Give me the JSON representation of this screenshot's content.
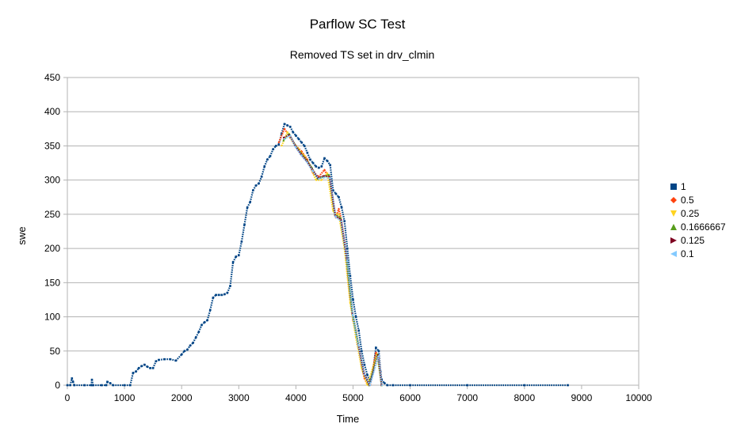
{
  "chart_data": {
    "type": "scatter",
    "title": "Parflow SC Test",
    "subtitle": "Removed TS set in drv_clmin",
    "xlabel": "Time",
    "ylabel": "swe",
    "xlim": [
      0,
      10000
    ],
    "ylim": [
      0,
      450
    ],
    "xticks": [
      0,
      1000,
      2000,
      3000,
      4000,
      5000,
      6000,
      7000,
      8000,
      9000,
      10000
    ],
    "yticks": [
      0,
      50,
      100,
      150,
      200,
      250,
      300,
      350,
      400,
      450
    ],
    "grid": "horizontal",
    "legend_position": "right",
    "series": [
      {
        "name": "1",
        "color": "#004586",
        "marker": "square",
        "points": [
          [
            0,
            0
          ],
          [
            50,
            0
          ],
          [
            80,
            10
          ],
          [
            100,
            5
          ],
          [
            120,
            0
          ],
          [
            300,
            0
          ],
          [
            420,
            0
          ],
          [
            430,
            8
          ],
          [
            450,
            0
          ],
          [
            600,
            0
          ],
          [
            680,
            0
          ],
          [
            700,
            5
          ],
          [
            750,
            3
          ],
          [
            800,
            0
          ],
          [
            1000,
            0
          ],
          [
            1100,
            0
          ],
          [
            1150,
            18
          ],
          [
            1200,
            20
          ],
          [
            1250,
            25
          ],
          [
            1300,
            28
          ],
          [
            1350,
            30
          ],
          [
            1400,
            27
          ],
          [
            1450,
            25
          ],
          [
            1500,
            25
          ],
          [
            1550,
            35
          ],
          [
            1600,
            37
          ],
          [
            1700,
            38
          ],
          [
            1800,
            38
          ],
          [
            1900,
            36
          ],
          [
            2000,
            45
          ],
          [
            2050,
            50
          ],
          [
            2100,
            52
          ],
          [
            2150,
            58
          ],
          [
            2200,
            62
          ],
          [
            2250,
            70
          ],
          [
            2300,
            78
          ],
          [
            2350,
            88
          ],
          [
            2400,
            92
          ],
          [
            2450,
            95
          ],
          [
            2500,
            110
          ],
          [
            2550,
            128
          ],
          [
            2600,
            132
          ],
          [
            2650,
            132
          ],
          [
            2700,
            132
          ],
          [
            2750,
            133
          ],
          [
            2800,
            135
          ],
          [
            2850,
            145
          ],
          [
            2900,
            180
          ],
          [
            2950,
            188
          ],
          [
            3000,
            190
          ],
          [
            3050,
            210
          ],
          [
            3100,
            235
          ],
          [
            3150,
            260
          ],
          [
            3200,
            268
          ],
          [
            3250,
            285
          ],
          [
            3300,
            292
          ],
          [
            3350,
            295
          ],
          [
            3400,
            305
          ],
          [
            3450,
            320
          ],
          [
            3500,
            330
          ],
          [
            3550,
            335
          ],
          [
            3600,
            345
          ],
          [
            3650,
            350
          ],
          [
            3700,
            352
          ],
          [
            3750,
            368
          ],
          [
            3800,
            382
          ],
          [
            3850,
            380
          ],
          [
            3900,
            378
          ],
          [
            3950,
            370
          ],
          [
            4000,
            365
          ],
          [
            4050,
            360
          ],
          [
            4100,
            355
          ],
          [
            4150,
            350
          ],
          [
            4200,
            340
          ],
          [
            4250,
            330
          ],
          [
            4300,
            325
          ],
          [
            4350,
            320
          ],
          [
            4400,
            318
          ],
          [
            4450,
            320
          ],
          [
            4500,
            332
          ],
          [
            4550,
            328
          ],
          [
            4600,
            322
          ],
          [
            4650,
            285
          ],
          [
            4700,
            280
          ],
          [
            4750,
            275
          ],
          [
            4800,
            260
          ],
          [
            4850,
            240
          ],
          [
            4900,
            200
          ],
          [
            4950,
            160
          ],
          [
            5000,
            125
          ],
          [
            5050,
            100
          ],
          [
            5100,
            80
          ],
          [
            5150,
            50
          ],
          [
            5200,
            30
          ],
          [
            5250,
            15
          ],
          [
            5300,
            5
          ],
          [
            5350,
            20
          ],
          [
            5400,
            55
          ],
          [
            5450,
            50
          ],
          [
            5480,
            20
          ],
          [
            5500,
            8
          ],
          [
            5550,
            3
          ],
          [
            5600,
            0
          ],
          [
            5700,
            0
          ],
          [
            6000,
            0
          ],
          [
            7000,
            0
          ],
          [
            8000,
            0
          ],
          [
            8760,
            0
          ]
        ]
      },
      {
        "name": "0.5",
        "color": "#ff420e",
        "marker": "diamond",
        "points": [
          [
            3700,
            355
          ],
          [
            3800,
            375
          ],
          [
            3900,
            362
          ],
          [
            4000,
            350
          ],
          [
            4100,
            342
          ],
          [
            4200,
            330
          ],
          [
            4300,
            310
          ],
          [
            4400,
            305
          ],
          [
            4500,
            315
          ],
          [
            4600,
            300
          ],
          [
            4650,
            265
          ],
          [
            4700,
            245
          ],
          [
            4750,
            258
          ],
          [
            4800,
            240
          ],
          [
            4850,
            210
          ],
          [
            4900,
            170
          ],
          [
            4950,
            130
          ],
          [
            5000,
            95
          ],
          [
            5050,
            80
          ],
          [
            5100,
            55
          ],
          [
            5150,
            30
          ],
          [
            5200,
            10
          ],
          [
            5250,
            2
          ],
          [
            5300,
            0
          ],
          [
            5400,
            48
          ],
          [
            5450,
            40
          ],
          [
            5500,
            0
          ]
        ]
      },
      {
        "name": "0.25",
        "color": "#ffd320",
        "marker": "triangle-down",
        "points": [
          [
            3750,
            350
          ],
          [
            3850,
            370
          ],
          [
            3950,
            355
          ],
          [
            4050,
            345
          ],
          [
            4150,
            335
          ],
          [
            4250,
            320
          ],
          [
            4350,
            300
          ],
          [
            4450,
            300
          ],
          [
            4550,
            310
          ],
          [
            4650,
            255
          ],
          [
            4700,
            250
          ],
          [
            4750,
            250
          ],
          [
            4850,
            200
          ],
          [
            4950,
            120
          ],
          [
            5050,
            70
          ],
          [
            5150,
            25
          ],
          [
            5250,
            0
          ],
          [
            5420,
            45
          ],
          [
            5500,
            0
          ]
        ]
      },
      {
        "name": "0.1666667",
        "color": "#579d1c",
        "marker": "triangle-up",
        "points": [
          [
            3780,
            358
          ],
          [
            3880,
            368
          ],
          [
            3980,
            352
          ],
          [
            4080,
            340
          ],
          [
            4180,
            330
          ],
          [
            4280,
            318
          ],
          [
            4380,
            302
          ],
          [
            4480,
            305
          ],
          [
            4580,
            308
          ],
          [
            4680,
            250
          ],
          [
            4780,
            245
          ],
          [
            4880,
            190
          ],
          [
            4980,
            110
          ],
          [
            5080,
            65
          ],
          [
            5180,
            20
          ],
          [
            5280,
            0
          ],
          [
            5430,
            45
          ],
          [
            5500,
            0
          ]
        ]
      },
      {
        "name": "0.125",
        "color": "#7e0021",
        "marker": "triangle-right",
        "points": [
          [
            3790,
            362
          ],
          [
            3890,
            366
          ],
          [
            3990,
            350
          ],
          [
            4090,
            338
          ],
          [
            4190,
            328
          ],
          [
            4290,
            315
          ],
          [
            4390,
            303
          ],
          [
            4490,
            306
          ],
          [
            4590,
            305
          ],
          [
            4690,
            248
          ],
          [
            4790,
            242
          ],
          [
            4890,
            185
          ],
          [
            4990,
            105
          ],
          [
            5090,
            60
          ],
          [
            5190,
            18
          ],
          [
            5290,
            0
          ],
          [
            5440,
            44
          ],
          [
            5500,
            0
          ]
        ]
      },
      {
        "name": "0.1",
        "color": "#83caff",
        "marker": "triangle-left",
        "points": [
          [
            3795,
            360
          ],
          [
            3895,
            365
          ],
          [
            3995,
            348
          ],
          [
            4095,
            336
          ],
          [
            4195,
            326
          ],
          [
            4295,
            313
          ],
          [
            4395,
            302
          ],
          [
            4495,
            304
          ],
          [
            4595,
            303
          ],
          [
            4695,
            246
          ],
          [
            4795,
            240
          ],
          [
            4895,
            182
          ],
          [
            4995,
            102
          ],
          [
            5095,
            58
          ],
          [
            5195,
            16
          ],
          [
            5295,
            0
          ],
          [
            5445,
            43
          ],
          [
            5500,
            0
          ]
        ]
      }
    ]
  }
}
